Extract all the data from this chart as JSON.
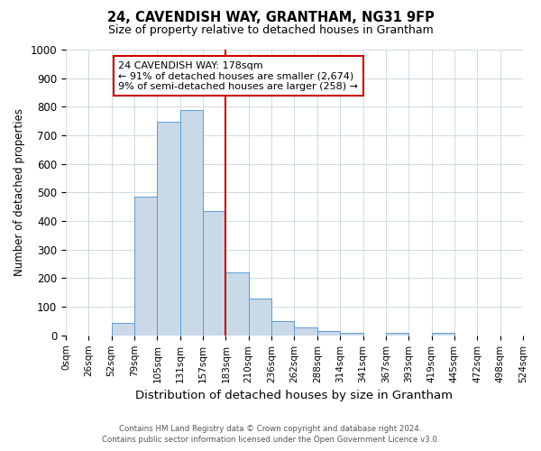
{
  "title": "24, CAVENDISH WAY, GRANTHAM, NG31 9FP",
  "subtitle": "Size of property relative to detached houses in Grantham",
  "xlabel": "Distribution of detached houses by size in Grantham",
  "ylabel": "Number of detached properties",
  "footnote1": "Contains HM Land Registry data © Crown copyright and database right 2024.",
  "footnote2": "Contains public sector information licensed under the Open Government Licence v3.0.",
  "bin_labels": [
    "0sqm",
    "26sqm",
    "52sqm",
    "79sqm",
    "105sqm",
    "131sqm",
    "157sqm",
    "183sqm",
    "210sqm",
    "236sqm",
    "262sqm",
    "288sqm",
    "314sqm",
    "341sqm",
    "367sqm",
    "393sqm",
    "419sqm",
    "445sqm",
    "472sqm",
    "498sqm",
    "524sqm"
  ],
  "bar_values": [
    0,
    0,
    44,
    484,
    746,
    790,
    435,
    220,
    130,
    50,
    28,
    14,
    10,
    0,
    8,
    0,
    8,
    0,
    0,
    0
  ],
  "bar_color": "#c9d9e8",
  "bar_edge_color": "#5b9bd5",
  "vline_x": 7,
  "vline_color": "#cc0000",
  "annotation_lines": [
    "24 CAVENDISH WAY: 178sqm",
    "← 91% of detached houses are smaller (2,674)",
    "9% of semi-detached houses are larger (258) →"
  ],
  "annotation_box_color": "#ffffff",
  "annotation_box_edge": "#cc0000",
  "ylim": [
    0,
    1000
  ],
  "yticks": [
    0,
    100,
    200,
    300,
    400,
    500,
    600,
    700,
    800,
    900,
    1000
  ],
  "background_color": "#ffffff",
  "grid_color": "#c8d4e0"
}
